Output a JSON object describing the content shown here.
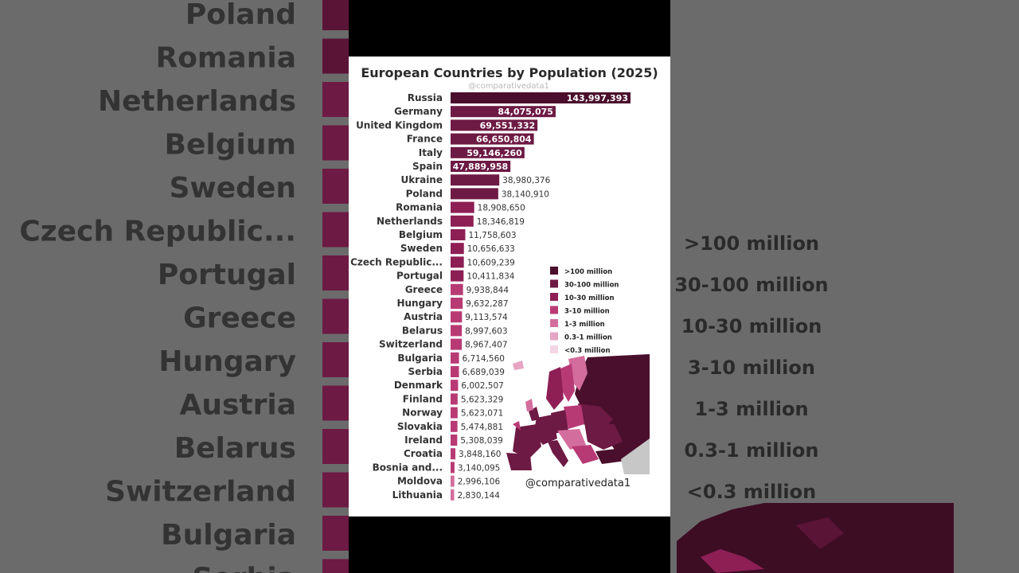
{
  "palette": {
    "gt100": "#4a0f2c",
    "m30_100": "#6d1a44",
    "m10_30": "#8d1f55",
    "m3_10": "#b83a75",
    "m1_3": "#d36d9d",
    "m03_1": "#e6a6c3",
    "lt03": "#f2d6e3"
  },
  "chart_data": {
    "type": "bar",
    "orientation": "horizontal",
    "title": "European Countries by Population (2025)",
    "watermark": "@comparativedata1",
    "categories": [
      "Russia",
      "Germany",
      "United Kingdom",
      "France",
      "Italy",
      "Spain",
      "Ukraine",
      "Poland",
      "Romania",
      "Netherlands",
      "Belgium",
      "Sweden",
      "Czech Republic...",
      "Portugal",
      "Greece",
      "Hungary",
      "Austria",
      "Belarus",
      "Switzerland",
      "Bulgaria",
      "Serbia",
      "Denmark",
      "Finland",
      "Norway",
      "Slovakia",
      "Ireland",
      "Croatia",
      "Bosnia and...",
      "Moldova",
      "Lithuania"
    ],
    "values": [
      143997393,
      84075075,
      69551332,
      66650804,
      59146260,
      47889958,
      38980376,
      38140910,
      18908650,
      18346819,
      11758603,
      10656633,
      10609239,
      10411834,
      9938844,
      9632287,
      9113574,
      8997603,
      8967407,
      6714560,
      6689039,
      6002507,
      5623329,
      5623071,
      5474881,
      5308039,
      3848160,
      3140095,
      2996106,
      2830144
    ],
    "value_labels": [
      "143,997,393",
      "84,075,075",
      "69,551,332",
      "66,650,804",
      "59,146,260",
      "47,889,958",
      "38,980,376",
      "38,140,910",
      "18,908,650",
      "18,346,819",
      "11,758,603",
      "10,656,633",
      "10,609,239",
      "10,411,834",
      "9,938,844",
      "9,632,287",
      "9,113,574",
      "8,997,603",
      "8,967,407",
      "6,714,560",
      "6,689,039",
      "6,002,507",
      "5,623,329",
      "5,623,071",
      "5,474,881",
      "5,308,039",
      "3,848,160",
      "3,140,095",
      "2,996,106",
      "2,830,144"
    ],
    "legend": {
      "position": "right",
      "items": [
        {
          "label": ">100 million",
          "key": "gt100"
        },
        {
          "label": "30-100 million",
          "key": "m30_100"
        },
        {
          "label": "10-30 million",
          "key": "m10_30"
        },
        {
          "label": "3-10 million",
          "key": "m3_10"
        },
        {
          "label": "1-3 million",
          "key": "m1_3"
        },
        {
          "label": "0.3-1 million",
          "key": "m03_1"
        },
        {
          "label": "<0.3 million",
          "key": "lt03"
        }
      ]
    }
  },
  "background": {
    "left_labels": [
      "Poland",
      "Romania",
      "Netherlands",
      "Belgium",
      "Sweden",
      "Czech Republic...",
      "Portugal",
      "Greece",
      "Hungary",
      "Austria",
      "Belarus",
      "Switzerland",
      "Bulgaria",
      "Serbia"
    ],
    "right_legend": [
      ">100 million",
      "30-100 million",
      "10-30 million",
      "3-10 million",
      "1-3 million",
      "0.3-1 million",
      "<0.3 million"
    ]
  },
  "map": {
    "caption": "@comparativedata1"
  }
}
